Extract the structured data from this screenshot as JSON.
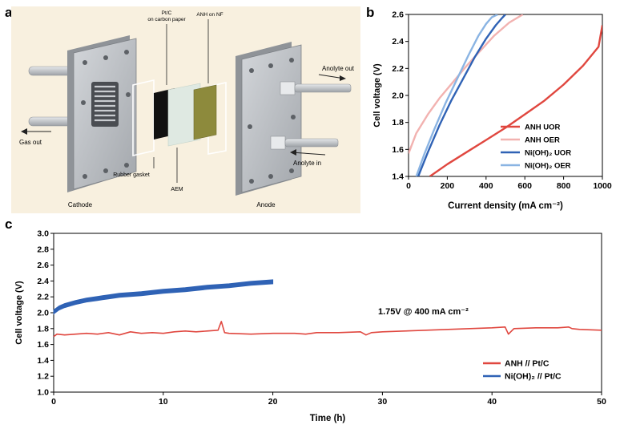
{
  "panel_labels": {
    "a": "a",
    "b": "b",
    "c": "c"
  },
  "schematic": {
    "pt_label_1": "Pt/C",
    "pt_label_2": "on carbon paper",
    "anh_label": "ANH on NF",
    "analyte_out": "Anolyte out",
    "gas_out": "Gas out",
    "rubber_gasket": "Rubber gasket",
    "aem": "AEM",
    "analyte_in": "Anolyte in",
    "cathode": "Cathode",
    "anode": "Anode",
    "colors": {
      "background": "#f8f0df",
      "plate": "#b9bcc1",
      "plate_dark": "#8f9398",
      "black": "#111111",
      "membrane": "#dfe9e2",
      "anh": "#8d8a3c"
    }
  },
  "chart_data": [
    {
      "type": "line",
      "panel": "b",
      "xlabel": "Current density (mA cm⁻²)",
      "ylabel": "Cell voltage (V)",
      "xlim": [
        0,
        1000
      ],
      "ylim": [
        1.4,
        2.6
      ],
      "xticks": [
        "0",
        "200",
        "400",
        "600",
        "800",
        "1000"
      ],
      "yticks": [
        "1.4",
        "1.6",
        "1.8",
        "2.0",
        "2.2",
        "2.4",
        "2.6"
      ],
      "legend_position": "bottom-right",
      "series": [
        {
          "name": "ANH UOR",
          "color": "#e0473f",
          "x": [
            110,
            200,
            300,
            400,
            500,
            600,
            700,
            800,
            900,
            980,
            1000
          ],
          "y": [
            1.4,
            1.49,
            1.58,
            1.67,
            1.76,
            1.86,
            1.96,
            2.08,
            2.22,
            2.36,
            2.52
          ]
        },
        {
          "name": "ANH OER",
          "color": "#f2b2b0",
          "x": [
            0,
            40,
            100,
            160,
            230,
            300,
            370,
            440,
            520,
            590
          ],
          "y": [
            1.57,
            1.72,
            1.86,
            1.98,
            2.1,
            2.22,
            2.33,
            2.44,
            2.54,
            2.6
          ]
        },
        {
          "name": "Ni(OH)₂ UOR",
          "color": "#2f62b5",
          "x": [
            50,
            100,
            160,
            220,
            280,
            340,
            400,
            450,
            480,
            500
          ],
          "y": [
            1.4,
            1.58,
            1.78,
            1.96,
            2.12,
            2.28,
            2.42,
            2.52,
            2.57,
            2.6
          ]
        },
        {
          "name": "Ni(OH)₂ OER",
          "color": "#8ab4e3",
          "x": [
            40,
            80,
            130,
            190,
            250,
            310,
            360,
            400,
            430,
            460
          ],
          "y": [
            1.4,
            1.56,
            1.74,
            1.94,
            2.12,
            2.3,
            2.44,
            2.53,
            2.58,
            2.6
          ]
        }
      ]
    },
    {
      "type": "line",
      "panel": "c",
      "xlabel": "Time (h)",
      "ylabel": "Cell voltage (V)",
      "xlim": [
        0,
        50
      ],
      "ylim": [
        1.0,
        3.0
      ],
      "xticks": [
        "0",
        "10",
        "20",
        "30",
        "40",
        "50"
      ],
      "yticks": [
        "1.0",
        "1.2",
        "1.4",
        "1.6",
        "1.8",
        "2.0",
        "2.2",
        "2.4",
        "2.6",
        "2.8",
        "3.0"
      ],
      "annotation": "1.75V @ 400 mA cm⁻²",
      "legend_position": "bottom-right",
      "series": [
        {
          "name": "ANH // Pt/C",
          "color": "#e0473f",
          "x": [
            0,
            0.3,
            1,
            2,
            3,
            4,
            5,
            6,
            7,
            8,
            9,
            10,
            11,
            12,
            13,
            14,
            15,
            15.3,
            15.6,
            16,
            18,
            20,
            22,
            23,
            24,
            26,
            28,
            28.5,
            29,
            30,
            32,
            34,
            36,
            38,
            40,
            41.2,
            41.5,
            42,
            44,
            46,
            47,
            47.3,
            48,
            50
          ],
          "y": [
            1.7,
            1.73,
            1.72,
            1.73,
            1.74,
            1.73,
            1.75,
            1.72,
            1.76,
            1.74,
            1.75,
            1.74,
            1.76,
            1.77,
            1.76,
            1.77,
            1.78,
            1.89,
            1.75,
            1.74,
            1.73,
            1.74,
            1.74,
            1.73,
            1.75,
            1.75,
            1.76,
            1.72,
            1.75,
            1.76,
            1.77,
            1.78,
            1.79,
            1.8,
            1.81,
            1.82,
            1.73,
            1.8,
            1.81,
            1.81,
            1.82,
            1.8,
            1.79,
            1.78
          ]
        },
        {
          "name": "Ni(OH)₂ // Pt/C",
          "color": "#2f62b5",
          "x": [
            0,
            0.5,
            1,
            2,
            3,
            4,
            5,
            6,
            8,
            10,
            12,
            14,
            16,
            18,
            20
          ],
          "y": [
            2.01,
            2.06,
            2.09,
            2.13,
            2.16,
            2.18,
            2.2,
            2.22,
            2.24,
            2.27,
            2.29,
            2.32,
            2.34,
            2.37,
            2.39
          ],
          "band": 0.05
        }
      ]
    }
  ]
}
